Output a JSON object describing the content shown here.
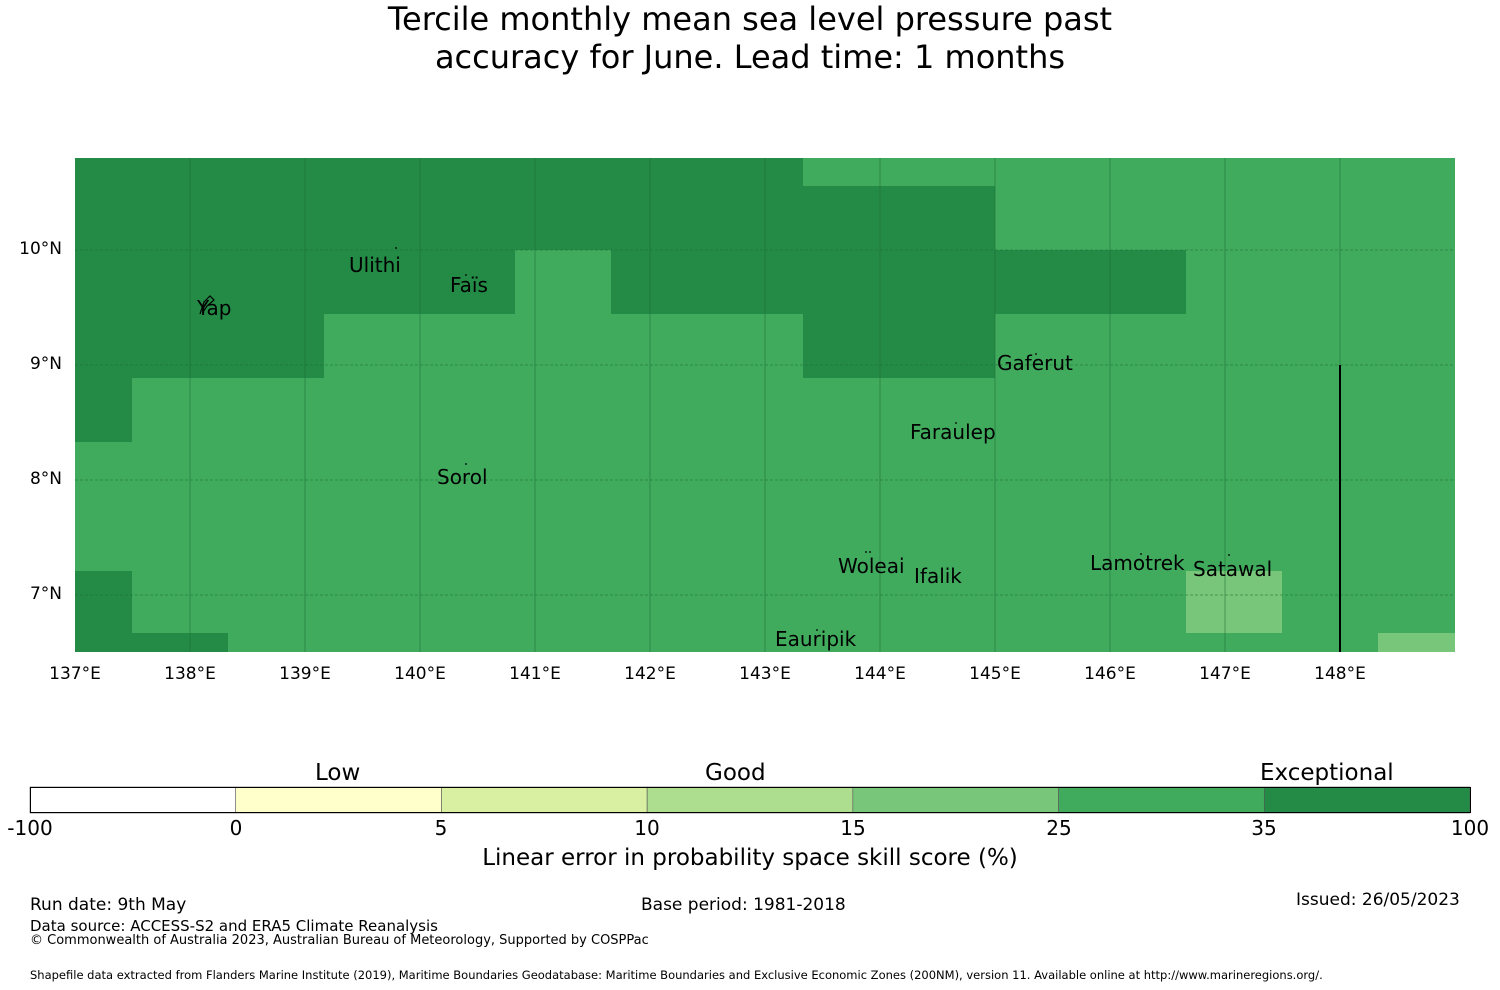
{
  "title_lines": [
    "Tercile monthly mean sea level pressure past",
    "accuracy for June. Lead time: 1 months"
  ],
  "map": {
    "lon_range": [
      137.0,
      149.0
    ],
    "lat_range": [
      6.5,
      10.8
    ],
    "lon_ticks": [
      "137°E",
      "138°E",
      "139°E",
      "140°E",
      "141°E",
      "142°E",
      "143°E",
      "144°E",
      "145°E",
      "146°E",
      "147°E",
      "148°E"
    ],
    "lat_ticks": [
      "7°N",
      "8°N",
      "9°N",
      "10°N"
    ],
    "cell_colors": {
      "exceptional": "#238b45",
      "very_high": "#41ab5d",
      "high": "#78c679"
    },
    "places": [
      {
        "name": "Yap",
        "lon": 138.05,
        "lat": 9.5
      },
      {
        "name": "Ulithi",
        "lon": 139.72,
        "lat": 9.9
      },
      {
        "name": "Faïs",
        "lon": 140.52,
        "lat": 9.77
      },
      {
        "name": "Gaferut",
        "lon": 145.38,
        "lat": 9.23
      },
      {
        "name": "Faraulep",
        "lon": 144.52,
        "lat": 8.6
      },
      {
        "name": "Sorol",
        "lon": 140.38,
        "lat": 8.15
      },
      {
        "name": "Woleai",
        "lon": 143.91,
        "lat": 7.38
      },
      {
        "name": "Ifalik",
        "lon": 144.45,
        "lat": 7.25
      },
      {
        "name": "Lamotrek",
        "lon": 146.32,
        "lat": 7.47
      },
      {
        "name": "Satawal",
        "lon": 147.03,
        "lat": 7.37
      },
      {
        "name": "Eauripik",
        "lon": 143.05,
        "lat": 6.69
      }
    ]
  },
  "colorbar": {
    "categories": [
      "Low",
      "Good",
      "Exceptional"
    ],
    "ticks": [
      "-100",
      "0",
      "5",
      "10",
      "15",
      "25",
      "35",
      "100"
    ],
    "colors": [
      "#ffffff",
      "#ffffcc",
      "#d9f0a3",
      "#addd8e",
      "#78c679",
      "#41ab5d",
      "#238b45"
    ],
    "label": "Linear error in probability space skill score (%)"
  },
  "footer": {
    "run_date": "Run date: 9th May",
    "base_period": "Base period: 1981-2018",
    "issued": "Issued: 26/05/2023",
    "data_source": "Data source: ACCESS-S2 and ERA5 Climate Reanalysis",
    "copyright": "© Commonwealth of Australia 2023, Australian Bureau of Meteorology, Supported by COSPPac",
    "shapefile": "Shapefile data extracted from Flanders Marine Institute (2019), Maritime Boundaries Geodatabase: Maritime Boundaries and Exclusive Economic Zones (200NM), version 11. Available online at http://www.marineregions.org/."
  }
}
